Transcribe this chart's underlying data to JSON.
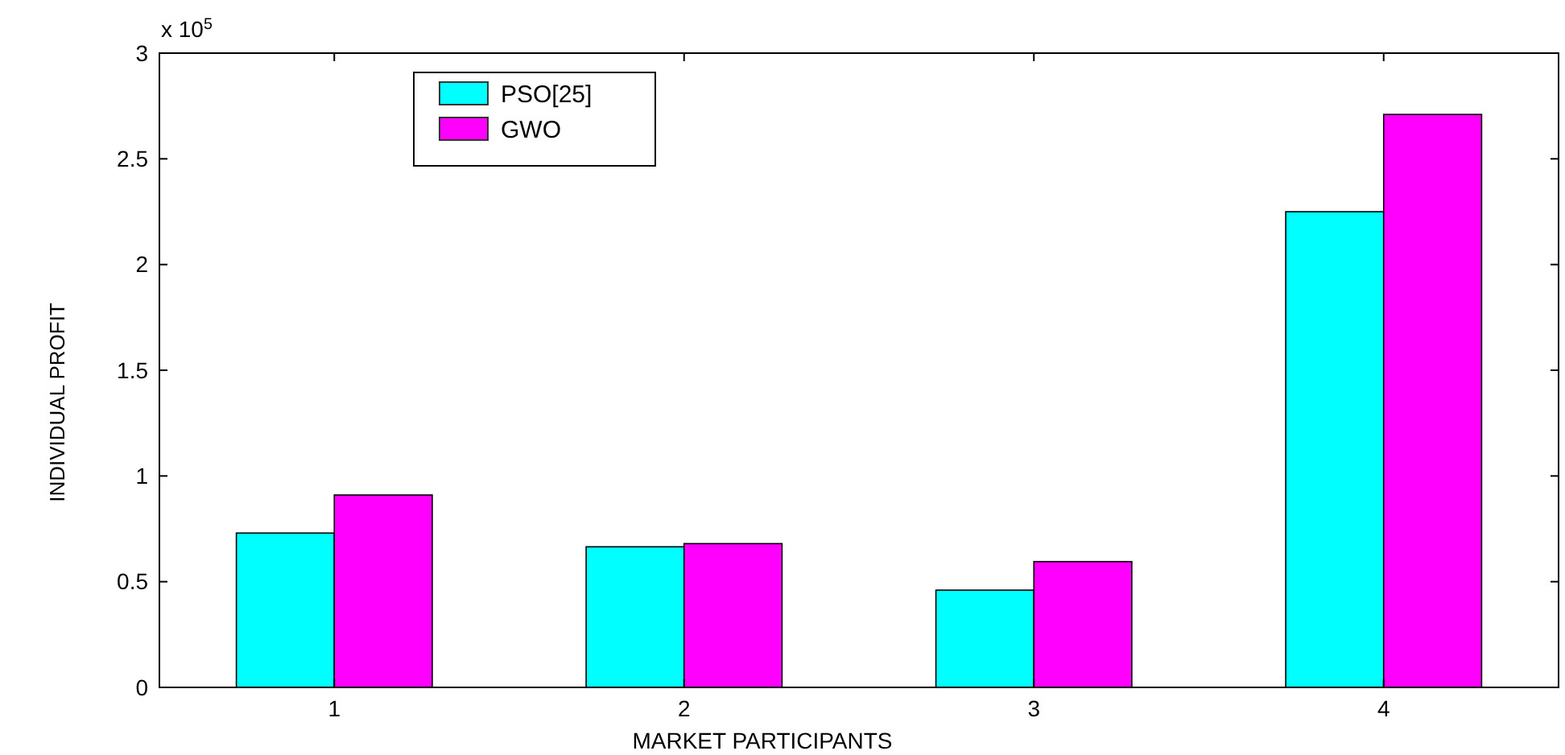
{
  "chart_data": {
    "type": "bar",
    "xlabel": "MARKET PARTICIPANTS",
    "ylabel": "INDIVIDUAL PROFIT",
    "categories": [
      "1",
      "2",
      "3",
      "4"
    ],
    "series": [
      {
        "name": "PSO[25]",
        "color": "#00ffff",
        "values": [
          0.73,
          0.665,
          0.46,
          2.25
        ]
      },
      {
        "name": "GWO",
        "color": "#ff00ff",
        "values": [
          0.91,
          0.68,
          0.595,
          2.71
        ]
      }
    ],
    "ylim": [
      0,
      3
    ],
    "yticks": [
      0,
      0.5,
      1,
      1.5,
      2,
      2.5,
      3
    ],
    "annotations": [
      "x 10$^{5}$"
    ],
    "legend": "top left",
    "grid": false
  }
}
